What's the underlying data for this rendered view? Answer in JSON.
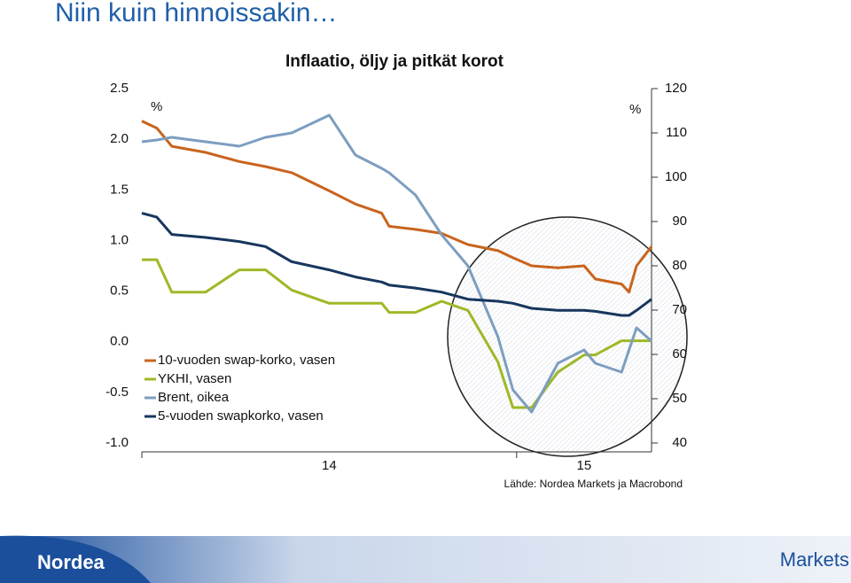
{
  "header": {
    "title": "Niin kuin hinnoissakin…"
  },
  "chart_data": {
    "type": "line",
    "title": "Inflaatio, öljy ja pitkät korot",
    "y_unit": "%",
    "y2_unit": "%",
    "source": "Lähde: Nordea Markets ja Macrobond",
    "x": [
      14.0,
      14.04,
      14.08,
      14.17,
      14.26,
      14.33,
      14.4,
      14.5,
      14.57,
      14.64,
      14.66,
      14.73,
      14.8,
      14.87,
      14.95,
      14.99,
      15.04,
      15.11,
      15.18,
      15.21,
      15.28,
      15.3,
      15.32,
      15.36
    ],
    "xlim": [
      14,
      15.36
    ],
    "xticks": [
      14,
      15
    ],
    "ylim": [
      -1,
      2.5
    ],
    "yticks": [
      {
        "value": -1,
        "label": "-1.0"
      },
      -0.5,
      {
        "value": 0,
        "label": "0.0"
      },
      0.5,
      {
        "value": 1,
        "label": "1.0"
      },
      1.5,
      {
        "value": 2,
        "label": "2.0"
      },
      2.5
    ],
    "y2lim": [
      40,
      120
    ],
    "y2ticks": [
      40,
      50,
      60,
      70,
      80,
      90,
      100,
      110,
      120
    ],
    "grid": false,
    "series": [
      {
        "name": "10-vuoden swap-korko, vasen",
        "color": "#c8641e",
        "values": [
          2.18,
          2.11,
          1.93,
          1.87,
          1.78,
          1.73,
          1.67,
          1.49,
          1.36,
          1.27,
          1.14,
          1.11,
          1.07,
          0.96,
          0.9,
          0.83,
          0.75,
          0.73,
          0.75,
          0.62,
          0.57,
          0.49,
          0.75,
          0.94
        ]
      },
      {
        "name": "YKHI, vasen",
        "color": "#9fb826",
        "values": [
          0.81,
          0.81,
          0.49,
          0.49,
          0.71,
          0.71,
          0.51,
          0.38,
          0.38,
          0.38,
          0.29,
          0.29,
          0.4,
          0.31,
          -0.2,
          -0.65,
          -0.65,
          -0.3,
          -0.13,
          -0.13,
          0.01,
          0.01,
          0.01,
          0.01
        ]
      },
      {
        "name": "Brent, oikea",
        "color": "#7d9ec0",
        "axis": "y2",
        "values": [
          108,
          108.4,
          109,
          108,
          107,
          109,
          110,
          114,
          105,
          102,
          101,
          96,
          87,
          80,
          64,
          52,
          47,
          58,
          61,
          58,
          56,
          61,
          66,
          63
        ]
      },
      {
        "name": "5-vuoden swapkorko, vasen",
        "color": "#17365d",
        "values": [
          1.27,
          1.23,
          1.06,
          1.03,
          0.99,
          0.94,
          0.79,
          0.71,
          0.64,
          0.59,
          0.56,
          0.53,
          0.49,
          0.42,
          0.4,
          0.38,
          0.33,
          0.31,
          0.31,
          0.3,
          0.26,
          0.26,
          0.31,
          0.42
        ]
      }
    ]
  },
  "footer": {
    "logo": "Nordea",
    "label": "Markets"
  }
}
